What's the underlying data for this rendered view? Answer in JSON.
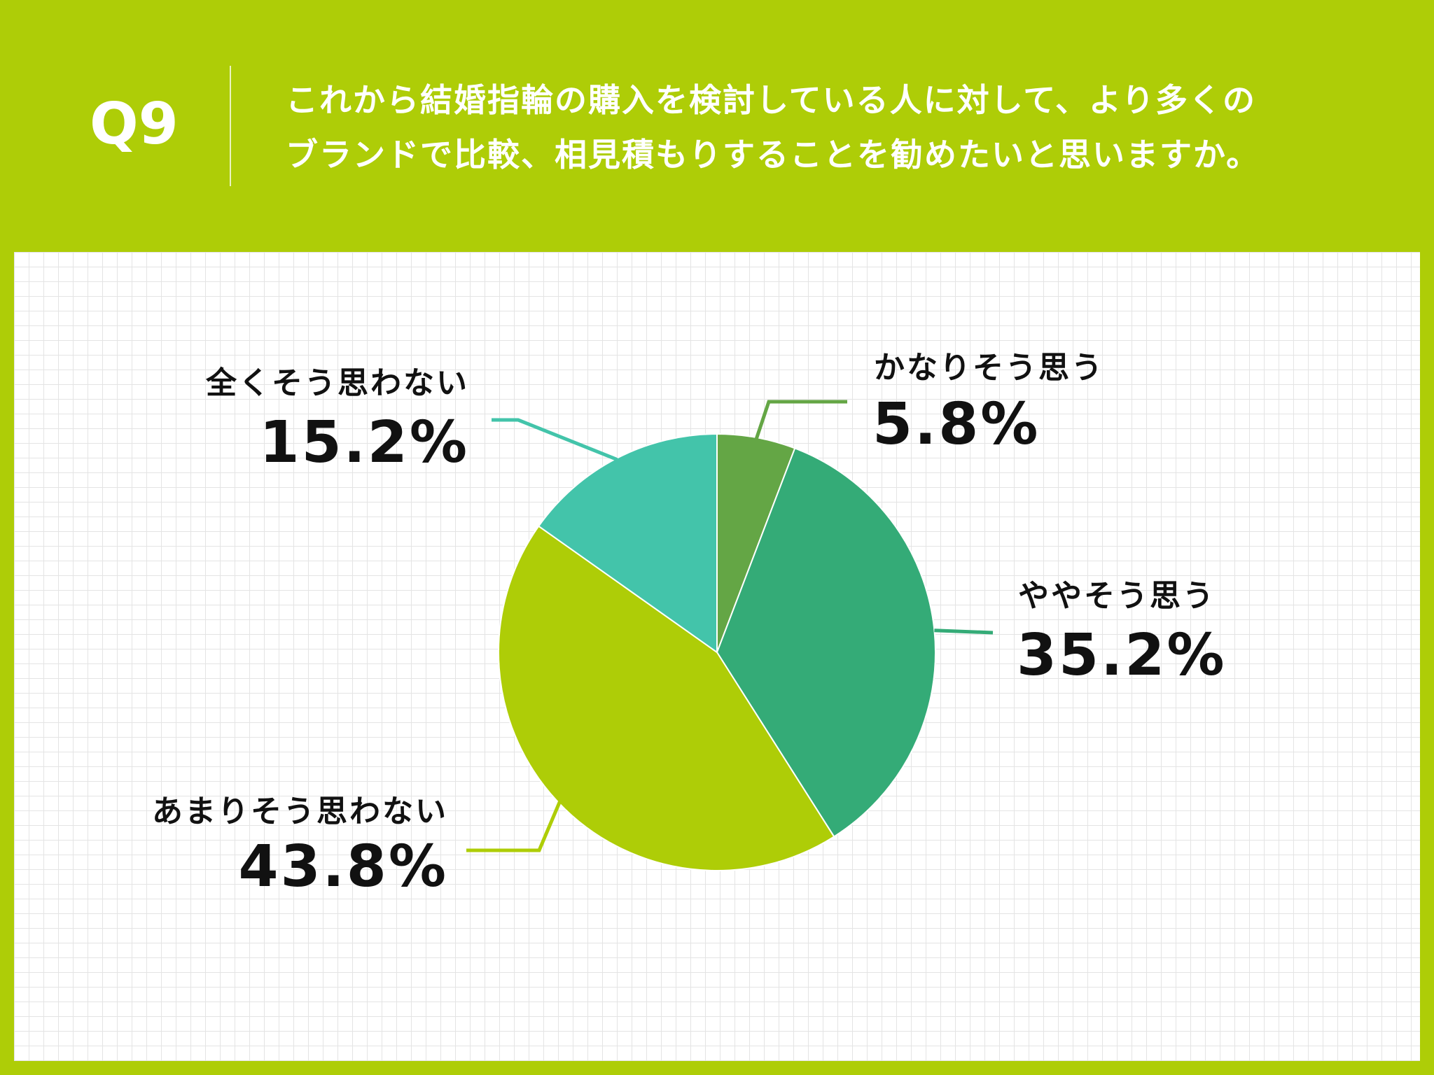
{
  "header": {
    "q_label": "Q9",
    "question_line1": "これから結婚指輪の購入を検討している人に対して、より多くの",
    "question_line2": "ブランドで比較、相見積もりすることを勧めたいと思いますか。"
  },
  "colors": {
    "background": "#aecd07",
    "panel": "#ffffff",
    "grid": "#e4e4e4"
  },
  "chart_data": {
    "type": "pie",
    "title": "",
    "slices": [
      {
        "label": "かなりそう思う",
        "value": 5.8,
        "display": "5.8%",
        "color": "#64a645"
      },
      {
        "label": "ややそう思う",
        "value": 35.2,
        "display": "35.2%",
        "color": "#34ab77"
      },
      {
        "label": "あまりそう思わない",
        "value": 43.8,
        "display": "43.8%",
        "color": "#aecd07"
      },
      {
        "label": "全くそう思わない",
        "value": 15.2,
        "display": "15.2%",
        "color": "#43c4aa"
      }
    ],
    "start_angle": "12 o'clock",
    "direction": "clockwise",
    "legend": "none (direct labels with leader lines)"
  }
}
